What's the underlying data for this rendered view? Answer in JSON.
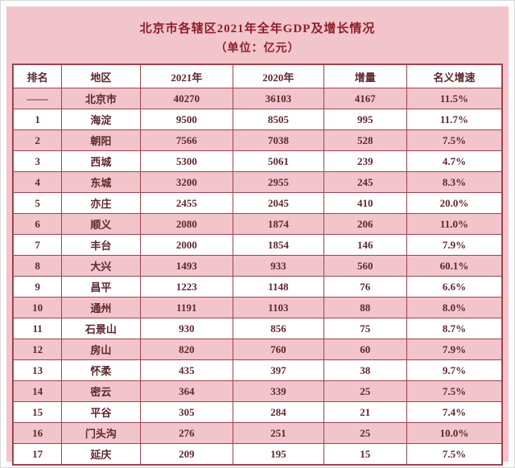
{
  "colors": {
    "panel_pink": "#f2c4cb",
    "row_pink": "#f2c4cb",
    "row_white": "#ffffff",
    "border": "#9a434d",
    "title_text": "#8e1f2b",
    "cell_text": "#5e272d"
  },
  "chart_data": {
    "type": "table",
    "title": "北京市各辖区2021年全年GDP及增长情况",
    "subtitle": "（单位：亿元）",
    "columns": [
      "排名",
      "地区",
      "2021年",
      "2020年",
      "增量",
      "名义增速"
    ],
    "rows": [
      [
        "——",
        "北京市",
        "40270",
        "36103",
        "4167",
        "11.5%"
      ],
      [
        "1",
        "海淀",
        "9500",
        "8505",
        "995",
        "11.7%"
      ],
      [
        "2",
        "朝阳",
        "7566",
        "7038",
        "528",
        "7.5%"
      ],
      [
        "3",
        "西城",
        "5300",
        "5061",
        "239",
        "4.7%"
      ],
      [
        "4",
        "东城",
        "3200",
        "2955",
        "245",
        "8.3%"
      ],
      [
        "5",
        "亦庄",
        "2455",
        "2045",
        "410",
        "20.0%"
      ],
      [
        "6",
        "顺义",
        "2080",
        "1874",
        "206",
        "11.0%"
      ],
      [
        "7",
        "丰台",
        "2000",
        "1854",
        "146",
        "7.9%"
      ],
      [
        "8",
        "大兴",
        "1493",
        "933",
        "560",
        "60.1%"
      ],
      [
        "9",
        "昌平",
        "1223",
        "1148",
        "76",
        "6.6%"
      ],
      [
        "10",
        "通州",
        "1191",
        "1103",
        "88",
        "8.0%"
      ],
      [
        "11",
        "石景山",
        "930",
        "856",
        "75",
        "8.7%"
      ],
      [
        "12",
        "房山",
        "820",
        "760",
        "60",
        "7.9%"
      ],
      [
        "13",
        "怀柔",
        "435",
        "397",
        "38",
        "9.7%"
      ],
      [
        "14",
        "密云",
        "364",
        "339",
        "25",
        "7.5%"
      ],
      [
        "15",
        "平谷",
        "305",
        "284",
        "21",
        "7.4%"
      ],
      [
        "16",
        "门头沟",
        "276",
        "251",
        "25",
        "10.0%"
      ],
      [
        "17",
        "延庆",
        "209",
        "195",
        "15",
        "7.5%"
      ]
    ]
  }
}
